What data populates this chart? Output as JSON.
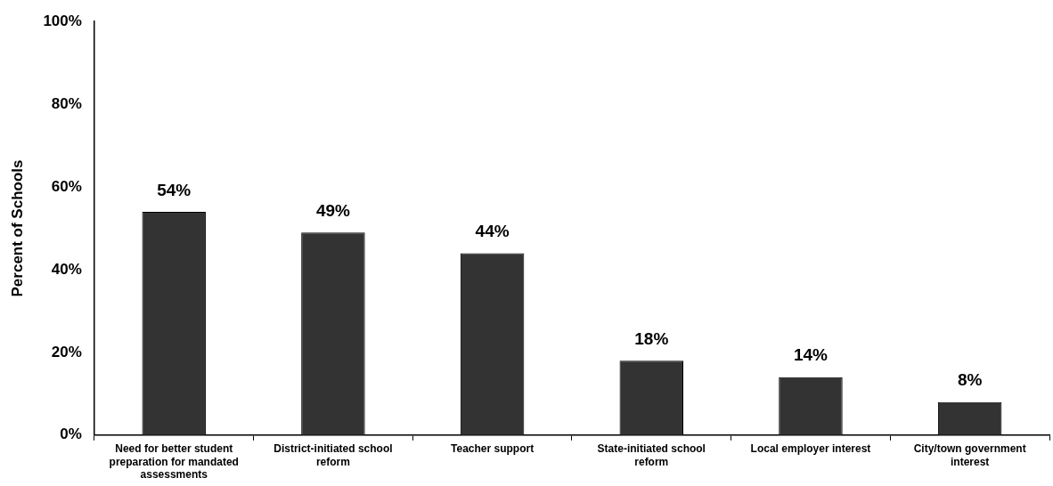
{
  "chart_data": {
    "type": "bar",
    "ylabel": "Percent of Schools",
    "categories": [
      "Need for better student preparation for mandated assessments",
      "District-initiated school reform",
      "Teacher support",
      "State-initiated school reform",
      "Local employer interest",
      "City/town government interest"
    ],
    "values": [
      54,
      49,
      44,
      18,
      14,
      8
    ],
    "value_labels": [
      "54%",
      "49%",
      "44%",
      "18%",
      "14%",
      "8%"
    ],
    "color": "#333333",
    "ylim": [
      0,
      100
    ],
    "yticks": [
      {
        "value": 0,
        "label": "0%"
      },
      {
        "value": 20,
        "label": "20%"
      },
      {
        "value": 40,
        "label": "40%"
      },
      {
        "value": 60,
        "label": "60%"
      },
      {
        "value": 80,
        "label": "80%"
      },
      {
        "value": 100,
        "label": "100%"
      }
    ],
    "grid": false,
    "legend": false
  }
}
